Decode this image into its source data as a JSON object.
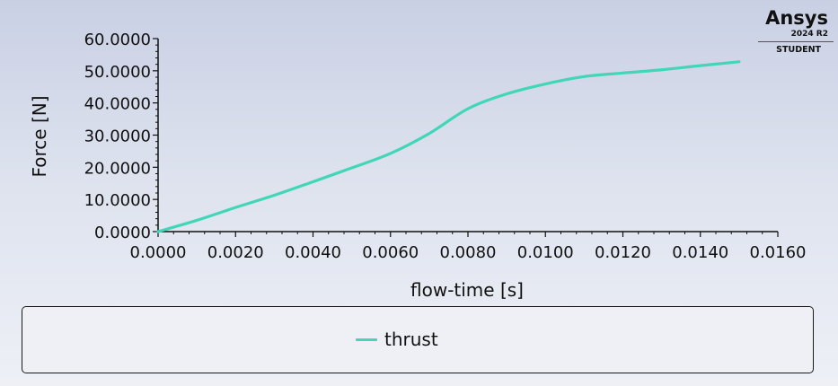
{
  "brand": {
    "name": "Ansys",
    "version": "2024 R2",
    "edition": "STUDENT"
  },
  "colors": {
    "series": "#42d6b8",
    "axis": "#111111",
    "text": "#111111"
  },
  "chart_data": {
    "type": "line",
    "title": "",
    "xlabel": "flow-time [s]",
    "ylabel": "Force [N]",
    "xlim": [
      0,
      0.016
    ],
    "ylim": [
      0,
      60
    ],
    "xticks": [
      "0.0000",
      "0.0020",
      "0.0040",
      "0.0060",
      "0.0080",
      "0.0100",
      "0.0120",
      "0.0140",
      "0.0160"
    ],
    "yticks": [
      "0.0000",
      "10.0000",
      "20.0000",
      "30.0000",
      "40.0000",
      "50.0000",
      "60.0000"
    ],
    "grid": false,
    "legend": "bottom",
    "series": [
      {
        "name": "thrust",
        "x": [
          0,
          0.001,
          0.002,
          0.003,
          0.004,
          0.005,
          0.006,
          0.007,
          0.008,
          0.009,
          0.01,
          0.011,
          0.012,
          0.013,
          0.014,
          0.015
        ],
        "y": [
          0,
          3.5,
          7.5,
          11.3,
          15.5,
          19.8,
          24.3,
          30.5,
          38.2,
          42.8,
          45.9,
          48.2,
          49.3,
          50.3,
          51.6,
          52.8
        ]
      }
    ]
  }
}
